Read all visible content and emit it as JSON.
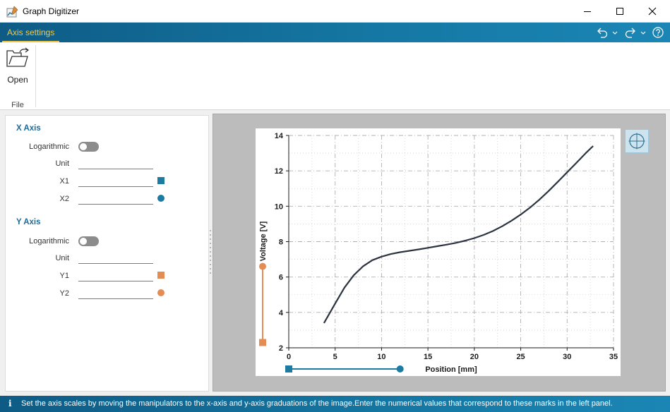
{
  "window": {
    "title": "Graph Digitizer",
    "icon": "graph-digitizer-app-icon",
    "controls": [
      "minimize-icon",
      "maximize-icon",
      "close-icon"
    ]
  },
  "ribbon": {
    "tabs": [
      {
        "label": "Axis settings",
        "active": true
      }
    ],
    "quick_access": [
      "undo-icon",
      "dropdown-chevron-icon",
      "redo-icon",
      "dropdown-chevron-icon",
      "help-icon"
    ],
    "groups": [
      {
        "label": "File",
        "buttons": [
          {
            "label": "Open",
            "icon": "open-folder-icon"
          }
        ]
      }
    ]
  },
  "left_panel": {
    "x_axis": {
      "title": "X Axis",
      "logarithmic_label": "Logarithmic",
      "logarithmic": false,
      "unit_label": "Unit",
      "unit_value": "",
      "x1_label": "X1",
      "x1_value": "",
      "x2_label": "X2",
      "x2_value": ""
    },
    "y_axis": {
      "title": "Y Axis",
      "logarithmic_label": "Logarithmic",
      "logarithmic": false,
      "unit_label": "Unit",
      "unit_value": "",
      "y1_label": "Y1",
      "y1_value": "",
      "y2_label": "Y2",
      "y2_value": ""
    }
  },
  "colors": {
    "accent": "#1577a3",
    "tab_highlight": "#f5c842",
    "x_marker": "#1d7aa0",
    "y_marker": "#e38d52",
    "curve": "#2b3340"
  },
  "chart_data": {
    "type": "line",
    "xlabel": "Position [mm]",
    "ylabel": "Voltage [V]",
    "xlim": [
      0,
      35
    ],
    "ylim": [
      2,
      14
    ],
    "x_ticks": [
      "0",
      "5",
      "10",
      "15",
      "20",
      "25",
      "30",
      "35"
    ],
    "y_ticks": [
      "2",
      "4",
      "6",
      "8",
      "10",
      "12",
      "14"
    ],
    "grid": true,
    "series": [
      {
        "x": [
          3.8,
          5,
          6,
          7,
          8,
          9,
          10,
          11,
          12,
          13,
          14,
          15,
          16,
          17,
          18,
          19,
          20,
          21,
          22,
          23,
          24,
          25,
          26,
          27,
          28,
          29,
          30,
          31,
          32,
          32.8
        ],
        "y": [
          3.4,
          4.5,
          5.4,
          6.1,
          6.6,
          6.95,
          7.15,
          7.3,
          7.4,
          7.48,
          7.56,
          7.65,
          7.74,
          7.83,
          7.93,
          8.05,
          8.2,
          8.38,
          8.6,
          8.87,
          9.18,
          9.53,
          9.92,
          10.37,
          10.86,
          11.38,
          11.92,
          12.45,
          13.0,
          13.4
        ]
      }
    ],
    "x_manipulator": {
      "x1": 0,
      "x2": 12
    },
    "y_manipulator": {
      "y1": 2.3,
      "y2": 6.6
    }
  },
  "status": {
    "icon_glyph": "i",
    "text": "Set the axis scales by moving the manipulators to the x-axis and y-axis graduations of the image.Enter the numerical values that correspond to these marks in the left panel."
  }
}
